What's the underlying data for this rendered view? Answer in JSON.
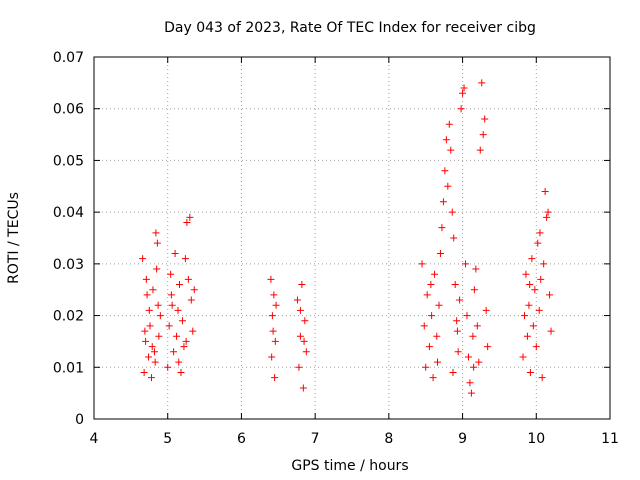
{
  "chart_data": {
    "type": "scatter",
    "title": "Day 043 of 2023, Rate Of TEC Index for receiver cibg",
    "xlabel": "GPS time / hours",
    "ylabel": "ROTI / TECUs",
    "xlim": [
      4,
      11
    ],
    "ylim": [
      0,
      0.07
    ],
    "xticks": [
      "4",
      "5",
      "6",
      "7",
      "8",
      "9",
      "10",
      "11"
    ],
    "yticks": [
      "0",
      "0.01",
      "0.02",
      "0.03",
      "0.04",
      "0.05",
      "0.06",
      "0.07"
    ],
    "grid": true,
    "marker": "+",
    "color": "#ff0000",
    "series": [
      {
        "name": "ROTI",
        "points": [
          [
            4.66,
            0.031
          ],
          [
            4.68,
            0.009
          ],
          [
            4.7,
            0.015
          ],
          [
            4.72,
            0.024
          ],
          [
            4.74,
            0.012
          ],
          [
            4.76,
            0.018
          ],
          [
            4.78,
            0.008
          ],
          [
            4.8,
            0.025
          ],
          [
            4.82,
            0.013
          ],
          [
            4.84,
            0.036
          ],
          [
            4.86,
            0.034
          ],
          [
            4.88,
            0.016
          ],
          [
            4.9,
            0.02
          ],
          [
            4.71,
            0.027
          ],
          [
            4.75,
            0.021
          ],
          [
            4.79,
            0.014
          ],
          [
            4.83,
            0.011
          ],
          [
            4.87,
            0.022
          ],
          [
            4.69,
            0.017
          ],
          [
            4.85,
            0.029
          ],
          [
            5.0,
            0.01
          ],
          [
            5.02,
            0.018
          ],
          [
            5.04,
            0.028
          ],
          [
            5.06,
            0.022
          ],
          [
            5.08,
            0.013
          ],
          [
            5.1,
            0.032
          ],
          [
            5.12,
            0.016
          ],
          [
            5.14,
            0.021
          ],
          [
            5.16,
            0.026
          ],
          [
            5.18,
            0.009
          ],
          [
            5.2,
            0.019
          ],
          [
            5.22,
            0.014
          ],
          [
            5.24,
            0.031
          ],
          [
            5.26,
            0.038
          ],
          [
            5.28,
            0.027
          ],
          [
            5.3,
            0.039
          ],
          [
            5.32,
            0.023
          ],
          [
            5.34,
            0.017
          ],
          [
            5.36,
            0.025
          ],
          [
            5.15,
            0.011
          ],
          [
            5.25,
            0.015
          ],
          [
            5.05,
            0.024
          ],
          [
            6.4,
            0.027
          ],
          [
            6.41,
            0.012
          ],
          [
            6.42,
            0.02
          ],
          [
            6.43,
            0.017
          ],
          [
            6.44,
            0.024
          ],
          [
            6.45,
            0.008
          ],
          [
            6.46,
            0.015
          ],
          [
            6.47,
            0.022
          ],
          [
            6.76,
            0.023
          ],
          [
            6.78,
            0.01
          ],
          [
            6.8,
            0.016
          ],
          [
            6.82,
            0.026
          ],
          [
            6.84,
            0.006
          ],
          [
            6.86,
            0.019
          ],
          [
            6.88,
            0.013
          ],
          [
            6.8,
            0.021
          ],
          [
            6.85,
            0.015
          ],
          [
            8.45,
            0.03
          ],
          [
            8.48,
            0.018
          ],
          [
            8.5,
            0.01
          ],
          [
            8.52,
            0.024
          ],
          [
            8.55,
            0.014
          ],
          [
            8.58,
            0.02
          ],
          [
            8.6,
            0.008
          ],
          [
            8.62,
            0.028
          ],
          [
            8.65,
            0.016
          ],
          [
            8.68,
            0.022
          ],
          [
            8.7,
            0.032
          ],
          [
            8.72,
            0.037
          ],
          [
            8.74,
            0.042
          ],
          [
            8.76,
            0.048
          ],
          [
            8.78,
            0.054
          ],
          [
            8.8,
            0.045
          ],
          [
            8.82,
            0.057
          ],
          [
            8.84,
            0.052
          ],
          [
            8.86,
            0.04
          ],
          [
            8.88,
            0.035
          ],
          [
            8.9,
            0.026
          ],
          [
            8.92,
            0.019
          ],
          [
            8.94,
            0.013
          ],
          [
            8.96,
            0.023
          ],
          [
            8.98,
            0.06
          ],
          [
            9.0,
            0.063
          ],
          [
            9.02,
            0.064
          ],
          [
            9.04,
            0.03
          ],
          [
            9.06,
            0.02
          ],
          [
            9.08,
            0.012
          ],
          [
            9.1,
            0.007
          ],
          [
            9.12,
            0.005
          ],
          [
            9.14,
            0.016
          ],
          [
            9.16,
            0.025
          ],
          [
            9.18,
            0.029
          ],
          [
            9.2,
            0.018
          ],
          [
            9.22,
            0.011
          ],
          [
            9.24,
            0.052
          ],
          [
            9.26,
            0.065
          ],
          [
            9.28,
            0.055
          ],
          [
            9.3,
            0.058
          ],
          [
            9.32,
            0.021
          ],
          [
            9.34,
            0.014
          ],
          [
            8.87,
            0.009
          ],
          [
            8.93,
            0.017
          ],
          [
            9.15,
            0.01
          ],
          [
            8.66,
            0.011
          ],
          [
            8.57,
            0.026
          ],
          [
            9.82,
            0.012
          ],
          [
            9.84,
            0.02
          ],
          [
            9.86,
            0.028
          ],
          [
            9.88,
            0.016
          ],
          [
            9.9,
            0.022
          ],
          [
            9.92,
            0.009
          ],
          [
            9.94,
            0.031
          ],
          [
            9.96,
            0.018
          ],
          [
            9.98,
            0.025
          ],
          [
            10.0,
            0.014
          ],
          [
            10.02,
            0.034
          ],
          [
            10.04,
            0.021
          ],
          [
            10.06,
            0.027
          ],
          [
            10.08,
            0.008
          ],
          [
            10.1,
            0.03
          ],
          [
            10.12,
            0.044
          ],
          [
            10.14,
            0.039
          ],
          [
            10.16,
            0.04
          ],
          [
            10.18,
            0.024
          ],
          [
            10.2,
            0.017
          ],
          [
            10.05,
            0.036
          ],
          [
            9.91,
            0.026
          ]
        ]
      }
    ]
  }
}
